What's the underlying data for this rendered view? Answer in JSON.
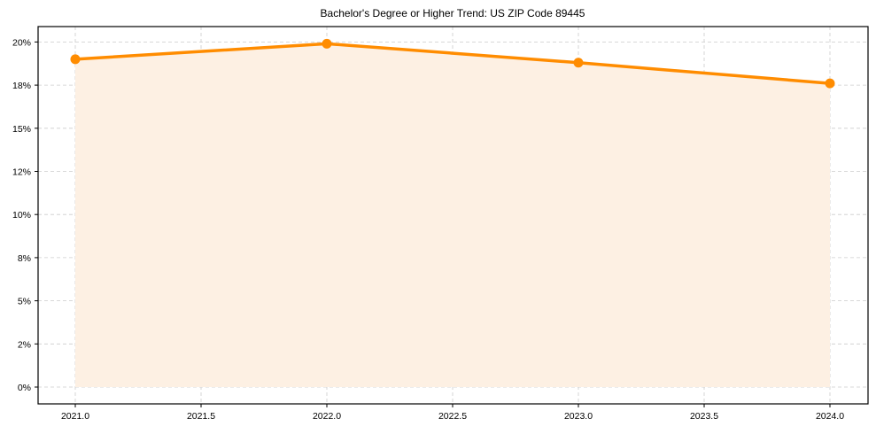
{
  "chart_data": {
    "type": "line",
    "title": "Bachelor's Degree or Higher Trend: US ZIP Code 89445",
    "xlabel": "",
    "ylabel": "",
    "x": [
      2021,
      2022,
      2023,
      2024
    ],
    "series": [
      {
        "name": "Bachelor's Degree or Higher",
        "values": [
          19.0,
          19.9,
          18.8,
          17.6
        ],
        "color": "#ff8c00",
        "fill": "#fdf0e3"
      }
    ],
    "xticks": [
      "2021.0",
      "2021.5",
      "2022.0",
      "2022.5",
      "2023.0",
      "2023.5",
      "2024.0"
    ],
    "xtick_values": [
      2021.0,
      2021.5,
      2022.0,
      2022.5,
      2023.0,
      2023.5,
      2024.0
    ],
    "yticks": [
      "0%",
      "2%",
      "5%",
      "8%",
      "10%",
      "12%",
      "15%",
      "18%",
      "20%"
    ],
    "ytick_values": [
      0,
      2.5,
      5,
      7.5,
      10,
      12.5,
      15,
      17.5,
      20
    ],
    "xlim": [
      2020.85,
      2024.15
    ],
    "ylim": [
      -1.0,
      20.85
    ],
    "grid": true,
    "legend": null
  }
}
